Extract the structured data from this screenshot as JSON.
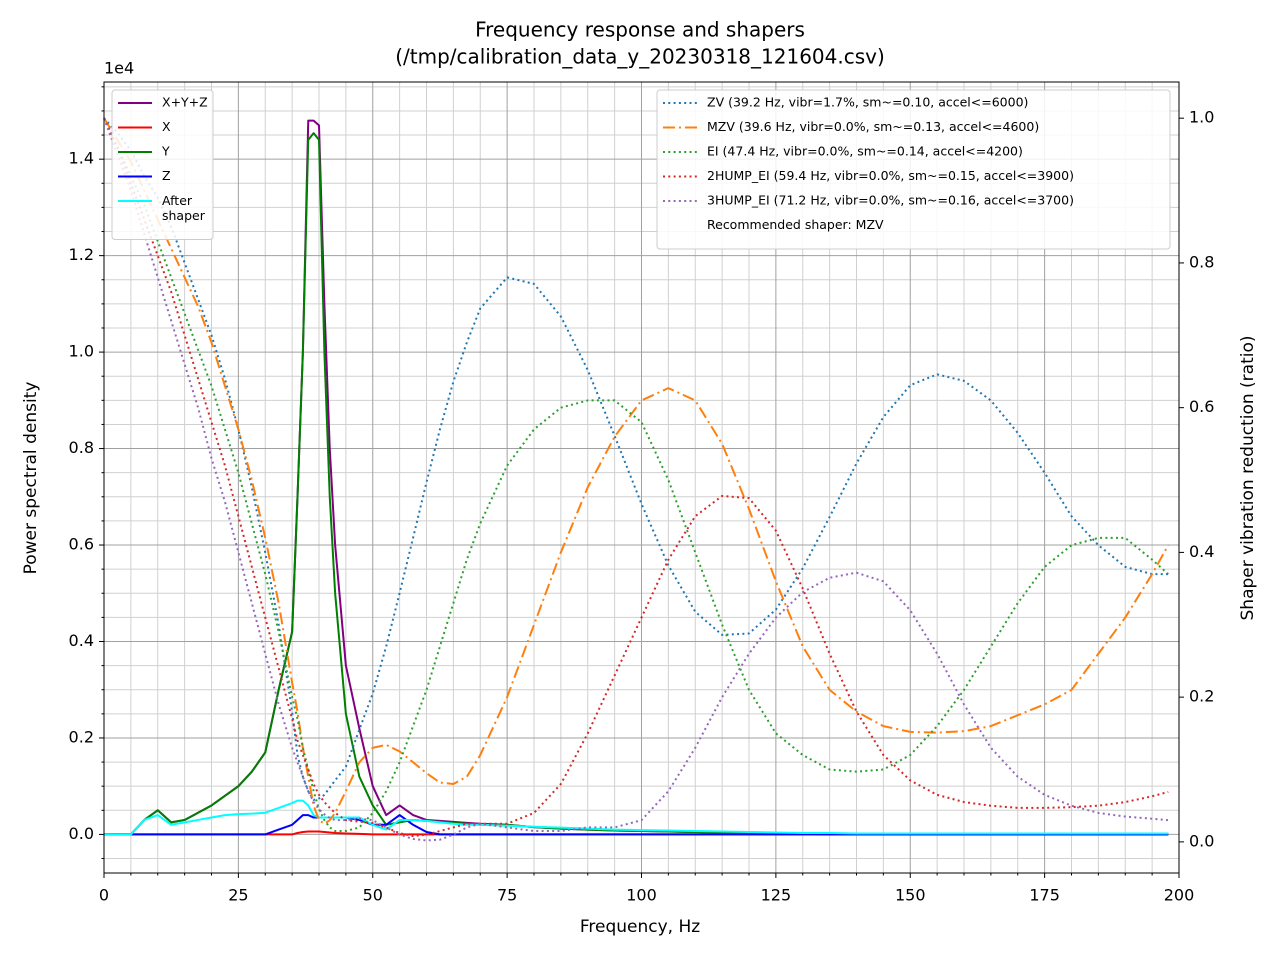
{
  "chart_data": {
    "type": "line",
    "title": "Frequency response and shapers",
    "subtitle": "(/tmp/calibration_data_y_20230318_121604.csv)",
    "x_label": "Frequency, Hz",
    "y_label": "Power spectral density",
    "y2_label": "Shaper vibration reduction (ratio)",
    "y_offset_label": "1e4",
    "legend_note": "Recommended shaper: MZV",
    "legend": "upper left",
    "legend2": "upper right",
    "grid": true,
    "x": [
      0,
      2.5,
      5,
      7.5,
      10,
      12.5,
      15,
      17.5,
      20,
      22.5,
      25,
      27.5,
      30,
      32.5,
      35,
      36,
      37,
      38,
      39,
      40,
      41,
      42,
      43,
      45,
      47.5,
      50,
      52.5,
      55,
      57.5,
      60,
      62.5,
      65,
      67.5,
      70,
      75,
      80,
      85,
      90,
      95,
      100,
      105,
      110,
      115,
      120,
      125,
      130,
      135,
      140,
      145,
      150,
      155,
      160,
      165,
      170,
      175,
      180,
      185,
      190,
      195,
      198
    ],
    "xlim": [
      0,
      200
    ],
    "xticks": [
      0,
      25,
      50,
      75,
      100,
      125,
      150,
      175,
      200
    ],
    "xminor": [
      5,
      10,
      15,
      20,
      30,
      35,
      40,
      45,
      55,
      60,
      65,
      70,
      80,
      85,
      90,
      95,
      105,
      110,
      115,
      120,
      130,
      135,
      140,
      145,
      155,
      160,
      165,
      170,
      180,
      185,
      190,
      195
    ],
    "ylim": [
      -0.08,
      1.56
    ],
    "yticks": [
      {
        "value": 0,
        "label": "0.0"
      },
      0.2,
      0.4,
      0.6,
      0.8,
      {
        "value": 1,
        "label": "1.0"
      },
      1.2,
      1.4
    ],
    "yminor": [
      -0.05,
      0.05,
      0.1,
      0.15,
      0.25,
      0.3,
      0.35,
      0.45,
      0.5,
      0.55,
      0.65,
      0.7,
      0.75,
      0.85,
      0.9,
      0.95,
      1.05,
      1.1,
      1.15,
      1.25,
      1.3,
      1.35,
      1.45,
      1.5,
      1.55
    ],
    "y2lim": [
      -0.043,
      1.05
    ],
    "y2ticks": [
      {
        "value": 0,
        "label": "0.0"
      },
      0.2,
      0.4,
      0.6,
      0.8,
      {
        "value": 1,
        "label": "1.0"
      }
    ],
    "series": [
      {
        "name": "X+Y+Z",
        "color": "#800080",
        "dash": "solid",
        "values": [
          0,
          0,
          0,
          0.03,
          0.05,
          0.025,
          0.03,
          0.045,
          0.06,
          0.08,
          0.1,
          0.13,
          0.17,
          0.3,
          0.42,
          0.7,
          1.0,
          1.48,
          1.48,
          1.47,
          1.1,
          0.8,
          0.6,
          0.35,
          0.22,
          0.1,
          0.04,
          0.06,
          0.04,
          0.03,
          0.028,
          0.026,
          0.024,
          0.022,
          0.02,
          0.015,
          0.012,
          0.01,
          0.008,
          0.007,
          0.006,
          0.005,
          0.004,
          0.003,
          0.002,
          0.001,
          0,
          0,
          0,
          0,
          0,
          0,
          0,
          0,
          0,
          0,
          0,
          0,
          0,
          0
        ]
      },
      {
        "name": "X",
        "color": "#ff0000",
        "dash": "solid",
        "values": [
          0,
          0,
          0,
          0,
          0,
          0,
          0,
          0,
          0,
          0,
          0,
          0,
          0,
          0,
          0,
          0.003,
          0.005,
          0.006,
          0.006,
          0.006,
          0.005,
          0.004,
          0.003,
          0.002,
          0.001,
          0,
          0,
          0,
          0,
          0,
          0,
          0,
          0,
          0,
          0,
          0,
          0,
          0,
          0,
          0,
          0,
          0,
          0,
          0,
          0,
          0,
          0,
          0,
          0,
          0,
          0,
          0,
          0,
          0,
          0,
          0,
          0,
          0,
          0,
          0
        ]
      },
      {
        "name": "Y",
        "color": "#008000",
        "dash": "solid",
        "values": [
          0,
          0,
          0,
          0.03,
          0.05,
          0.025,
          0.03,
          0.045,
          0.06,
          0.08,
          0.1,
          0.13,
          0.17,
          0.3,
          0.42,
          0.7,
          1.0,
          1.44,
          1.454,
          1.44,
          1.0,
          0.7,
          0.5,
          0.25,
          0.12,
          0.06,
          0.02,
          0.025,
          0.03,
          0.028,
          0.026,
          0.024,
          0.022,
          0.02,
          0.02,
          0.015,
          0.012,
          0.01,
          0.008,
          0.007,
          0.006,
          0.005,
          0.004,
          0.003,
          0.002,
          0.001,
          0,
          0,
          0,
          0,
          0,
          0,
          0,
          0,
          0,
          0,
          0,
          0,
          0,
          0
        ]
      },
      {
        "name": "Z",
        "color": "#0000ff",
        "dash": "solid",
        "values": [
          0,
          0,
          0,
          0,
          0,
          0,
          0,
          0,
          0,
          0,
          0,
          0,
          0,
          0.01,
          0.02,
          0.03,
          0.04,
          0.04,
          0.035,
          0.035,
          0.035,
          0.035,
          0.035,
          0.035,
          0.03,
          0.02,
          0.02,
          0.04,
          0.02,
          0.005,
          0,
          0,
          0,
          0,
          0,
          0,
          0,
          0,
          0,
          0,
          0,
          0,
          0,
          0,
          0,
          0,
          0,
          0,
          0,
          0,
          0,
          0,
          0,
          0,
          0,
          0,
          0,
          0,
          0,
          0
        ]
      },
      {
        "name": "After\nshaper",
        "color": "#00ffff",
        "dash": "solid",
        "values": [
          0,
          0,
          0,
          0.03,
          0.04,
          0.02,
          0.025,
          0.03,
          0.035,
          0.04,
          0.042,
          0.043,
          0.045,
          0.055,
          0.065,
          0.07,
          0.07,
          0.06,
          0.04,
          0.035,
          0.035,
          0.035,
          0.035,
          0.035,
          0.035,
          0.02,
          0.01,
          0.03,
          0.03,
          0.028,
          0.025,
          0.022,
          0.02,
          0.02,
          0.018,
          0.016,
          0.014,
          0.012,
          0.01,
          0.009,
          0.008,
          0.007,
          0.006,
          0.005,
          0.004,
          0.003,
          0.003,
          0.002,
          0.002,
          0.002,
          0.002,
          0.002,
          0.002,
          0.002,
          0.002,
          0.002,
          0.002,
          0.002,
          0.002,
          0.002
        ]
      },
      {
        "name": "ZV (39.2 Hz, vibr=1.7%, sm~=0.10, accel<=6000)",
        "color": "#1f77b4",
        "dash": "dotted",
        "axis": "y2",
        "values": [
          1.0,
          0.98,
          0.955,
          0.92,
          0.89,
          0.85,
          0.8,
          0.75,
          0.7,
          0.64,
          0.57,
          0.49,
          0.4,
          0.3,
          0.18,
          0.12,
          0.09,
          0.07,
          0.058,
          0.06,
          0.065,
          0.075,
          0.085,
          0.104,
          0.155,
          0.205,
          0.27,
          0.344,
          0.42,
          0.497,
          0.57,
          0.636,
          0.69,
          0.737,
          0.78,
          0.771,
          0.726,
          0.652,
          0.561,
          0.467,
          0.382,
          0.318,
          0.286,
          0.288,
          0.321,
          0.378,
          0.449,
          0.523,
          0.587,
          0.631,
          0.646,
          0.637,
          0.61,
          0.565,
          0.51,
          0.45,
          0.41,
          0.38,
          0.37,
          0.37
        ]
      },
      {
        "name": "MZV (39.6 Hz, vibr=0.0%, sm~=0.13, accel<=4600)",
        "color": "#ff7f0e",
        "dash": "dashdot",
        "axis": "y2",
        "values": [
          1.0,
          0.97,
          0.94,
          0.9,
          0.86,
          0.82,
          0.78,
          0.74,
          0.69,
          0.63,
          0.57,
          0.5,
          0.42,
          0.33,
          0.22,
          0.18,
          0.13,
          0.09,
          0.05,
          0.03,
          0.025,
          0.03,
          0.04,
          0.07,
          0.11,
          0.13,
          0.134,
          0.125,
          0.11,
          0.095,
          0.082,
          0.08,
          0.09,
          0.12,
          0.2,
          0.3,
          0.4,
          0.49,
          0.56,
          0.61,
          0.627,
          0.61,
          0.55,
          0.46,
          0.36,
          0.27,
          0.21,
          0.18,
          0.16,
          0.152,
          0.151,
          0.153,
          0.16,
          0.175,
          0.19,
          0.21,
          0.26,
          0.31,
          0.37,
          0.41
        ]
      },
      {
        "name": "EI (47.4 Hz, vibr=0.0%, sm~=0.14, accel<=4200)",
        "color": "#2ca02c",
        "dash": "dotted",
        "axis": "y2",
        "values": [
          1.0,
          0.96,
          0.92,
          0.88,
          0.83,
          0.78,
          0.73,
          0.68,
          0.63,
          0.57,
          0.51,
          0.44,
          0.37,
          0.29,
          0.2,
          0.17,
          0.13,
          0.1,
          0.07,
          0.045,
          0.03,
          0.02,
          0.015,
          0.015,
          0.02,
          0.04,
          0.07,
          0.11,
          0.16,
          0.21,
          0.27,
          0.33,
          0.39,
          0.44,
          0.52,
          0.57,
          0.6,
          0.61,
          0.61,
          0.58,
          0.5,
          0.4,
          0.3,
          0.21,
          0.15,
          0.12,
          0.1,
          0.097,
          0.1,
          0.12,
          0.16,
          0.21,
          0.27,
          0.33,
          0.38,
          0.41,
          0.42,
          0.42,
          0.39,
          0.37
        ]
      },
      {
        "name": "2HUMP_EI (59.4 Hz, vibr=0.0%, sm~=0.15, accel<=3900)",
        "color": "#d62728",
        "dash": "dotted",
        "axis": "y2",
        "values": [
          1.0,
          0.96,
          0.91,
          0.86,
          0.81,
          0.76,
          0.7,
          0.64,
          0.58,
          0.52,
          0.45,
          0.38,
          0.31,
          0.24,
          0.17,
          0.14,
          0.12,
          0.1,
          0.08,
          0.065,
          0.055,
          0.047,
          0.04,
          0.03,
          0.028,
          0.026,
          0.02,
          0.012,
          0.008,
          0.01,
          0.015,
          0.02,
          0.025,
          0.025,
          0.025,
          0.04,
          0.08,
          0.15,
          0.23,
          0.31,
          0.39,
          0.45,
          0.478,
          0.475,
          0.43,
          0.35,
          0.26,
          0.18,
          0.12,
          0.085,
          0.065,
          0.055,
          0.05,
          0.047,
          0.047,
          0.048,
          0.05,
          0.055,
          0.063,
          0.069
        ]
      },
      {
        "name": "3HUMP_EI (71.2 Hz, vibr=0.0%, sm~=0.16, accel<=3700)",
        "color": "#9467bd",
        "dash": "dotted",
        "axis": "y2",
        "values": [
          1.0,
          0.95,
          0.9,
          0.84,
          0.78,
          0.72,
          0.66,
          0.6,
          0.53,
          0.47,
          0.4,
          0.33,
          0.26,
          0.19,
          0.13,
          0.11,
          0.09,
          0.07,
          0.055,
          0.045,
          0.038,
          0.033,
          0.03,
          0.03,
          0.032,
          0.03,
          0.02,
          0.01,
          0.004,
          0.002,
          0.003,
          0.01,
          0.02,
          0.025,
          0.02,
          0.015,
          0.015,
          0.02,
          0.02,
          0.03,
          0.07,
          0.13,
          0.2,
          0.26,
          0.31,
          0.345,
          0.365,
          0.372,
          0.36,
          0.32,
          0.26,
          0.19,
          0.13,
          0.09,
          0.065,
          0.05,
          0.04,
          0.035,
          0.032,
          0.03
        ]
      }
    ]
  }
}
